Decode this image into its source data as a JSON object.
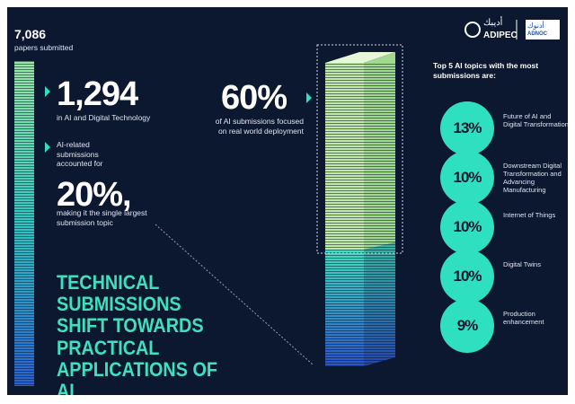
{
  "header": {
    "total_value": "7,086",
    "total_label": "papers submitted",
    "logos": [
      {
        "arabic": "أديبك",
        "name": "ADIPEC"
      },
      {
        "arabic": "أدنوك",
        "name": "ADNOC"
      }
    ]
  },
  "ai_stat": {
    "value": "1,294",
    "label": "in AI and Digital Technology"
  },
  "share_stat": {
    "intro": "AI-related submissions accounted for",
    "value": "20%,",
    "label": "making it the single largest submission topic"
  },
  "headline": "TECHNICAL SUBMISSIONS SHIFT TOWARDS PRACTICAL APPLICATIONS OF AI",
  "deployment_stat": {
    "value": "60%",
    "label": "of AI submissions focused on real world deployment"
  },
  "topics": {
    "title": "Top 5 AI topics with the most submissions are:",
    "items": [
      {
        "value": "13%",
        "label": "Future of AI and Digital Transformation"
      },
      {
        "value": "10%",
        "label": "Downstream Digital Transformation and Advancing Manufacturing"
      },
      {
        "value": "10%",
        "label": "Internet of Things"
      },
      {
        "value": "10%",
        "label": "Digital Twins"
      },
      {
        "value": "9%",
        "label": "Production enhancement"
      }
    ]
  }
}
